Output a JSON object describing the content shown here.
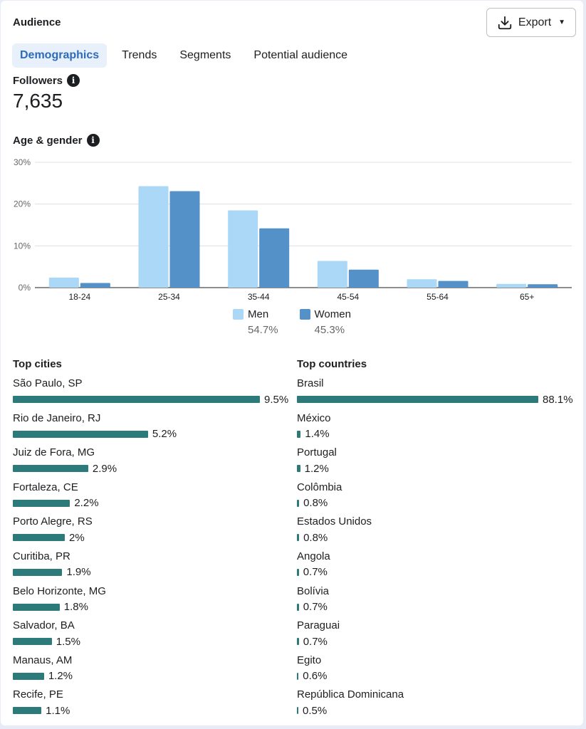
{
  "header": {
    "title": "Audience",
    "export_label": "Export"
  },
  "tabs": [
    {
      "label": "Demographics",
      "active": true
    },
    {
      "label": "Trends",
      "active": false
    },
    {
      "label": "Segments",
      "active": false
    },
    {
      "label": "Potential audience",
      "active": false
    }
  ],
  "followers": {
    "label": "Followers",
    "value": "7,635"
  },
  "age_gender": {
    "label": "Age & gender"
  },
  "chart_data": {
    "type": "bar",
    "categories": [
      "18-24",
      "25-34",
      "35-44",
      "45-54",
      "55-64",
      "65+"
    ],
    "series": [
      {
        "name": "Men",
        "values": [
          2.4,
          24.3,
          18.5,
          6.4,
          2.0,
          0.9
        ],
        "color": "#acd8f7"
      },
      {
        "name": "Women",
        "values": [
          1.1,
          23.1,
          14.2,
          4.3,
          1.6,
          0.8
        ],
        "color": "#5491c9"
      }
    ],
    "yticks": [
      "0%",
      "10%",
      "20%",
      "30%"
    ],
    "ylim": [
      0,
      30
    ],
    "grid": true,
    "legend": [
      {
        "label": "Men",
        "pct": "54.7%"
      },
      {
        "label": "Women",
        "pct": "45.3%"
      }
    ]
  },
  "top_cities": {
    "title": "Top cities",
    "items": [
      {
        "name": "São Paulo, SP",
        "label": "9.5%",
        "value": 9.5
      },
      {
        "name": "Rio de Janeiro, RJ",
        "label": "5.2%",
        "value": 5.2
      },
      {
        "name": "Juiz de Fora, MG",
        "label": "2.9%",
        "value": 2.9
      },
      {
        "name": "Fortaleza, CE",
        "label": "2.2%",
        "value": 2.2
      },
      {
        "name": "Porto Alegre, RS",
        "label": "2%",
        "value": 2.0
      },
      {
        "name": "Curitiba, PR",
        "label": "1.9%",
        "value": 1.9
      },
      {
        "name": "Belo Horizonte, MG",
        "label": "1.8%",
        "value": 1.8
      },
      {
        "name": "Salvador, BA",
        "label": "1.5%",
        "value": 1.5
      },
      {
        "name": "Manaus, AM",
        "label": "1.2%",
        "value": 1.2
      },
      {
        "name": "Recife, PE",
        "label": "1.1%",
        "value": 1.1
      }
    ]
  },
  "top_countries": {
    "title": "Top countries",
    "items": [
      {
        "name": "Brasil",
        "label": "88.1%",
        "value": 88.1
      },
      {
        "name": "México",
        "label": "1.4%",
        "value": 1.4
      },
      {
        "name": "Portugal",
        "label": "1.2%",
        "value": 1.2
      },
      {
        "name": "Colômbia",
        "label": "0.8%",
        "value": 0.8
      },
      {
        "name": "Estados Unidos",
        "label": "0.8%",
        "value": 0.8
      },
      {
        "name": "Angola",
        "label": "0.7%",
        "value": 0.7
      },
      {
        "name": "Bolívia",
        "label": "0.7%",
        "value": 0.7
      },
      {
        "name": "Paraguai",
        "label": "0.7%",
        "value": 0.7
      },
      {
        "name": "Egito",
        "label": "0.6%",
        "value": 0.6
      },
      {
        "name": "República Dominicana",
        "label": "0.5%",
        "value": 0.5
      }
    ]
  },
  "colors": {
    "bar": "#2d7a7a",
    "men": "#acd8f7",
    "women": "#5491c9",
    "tab_active_bg": "#e7f0fb",
    "tab_active_text": "#2e6bb8"
  },
  "icons": {
    "export": "download-icon",
    "info": "info-icon",
    "caret": "caret-down-icon"
  }
}
